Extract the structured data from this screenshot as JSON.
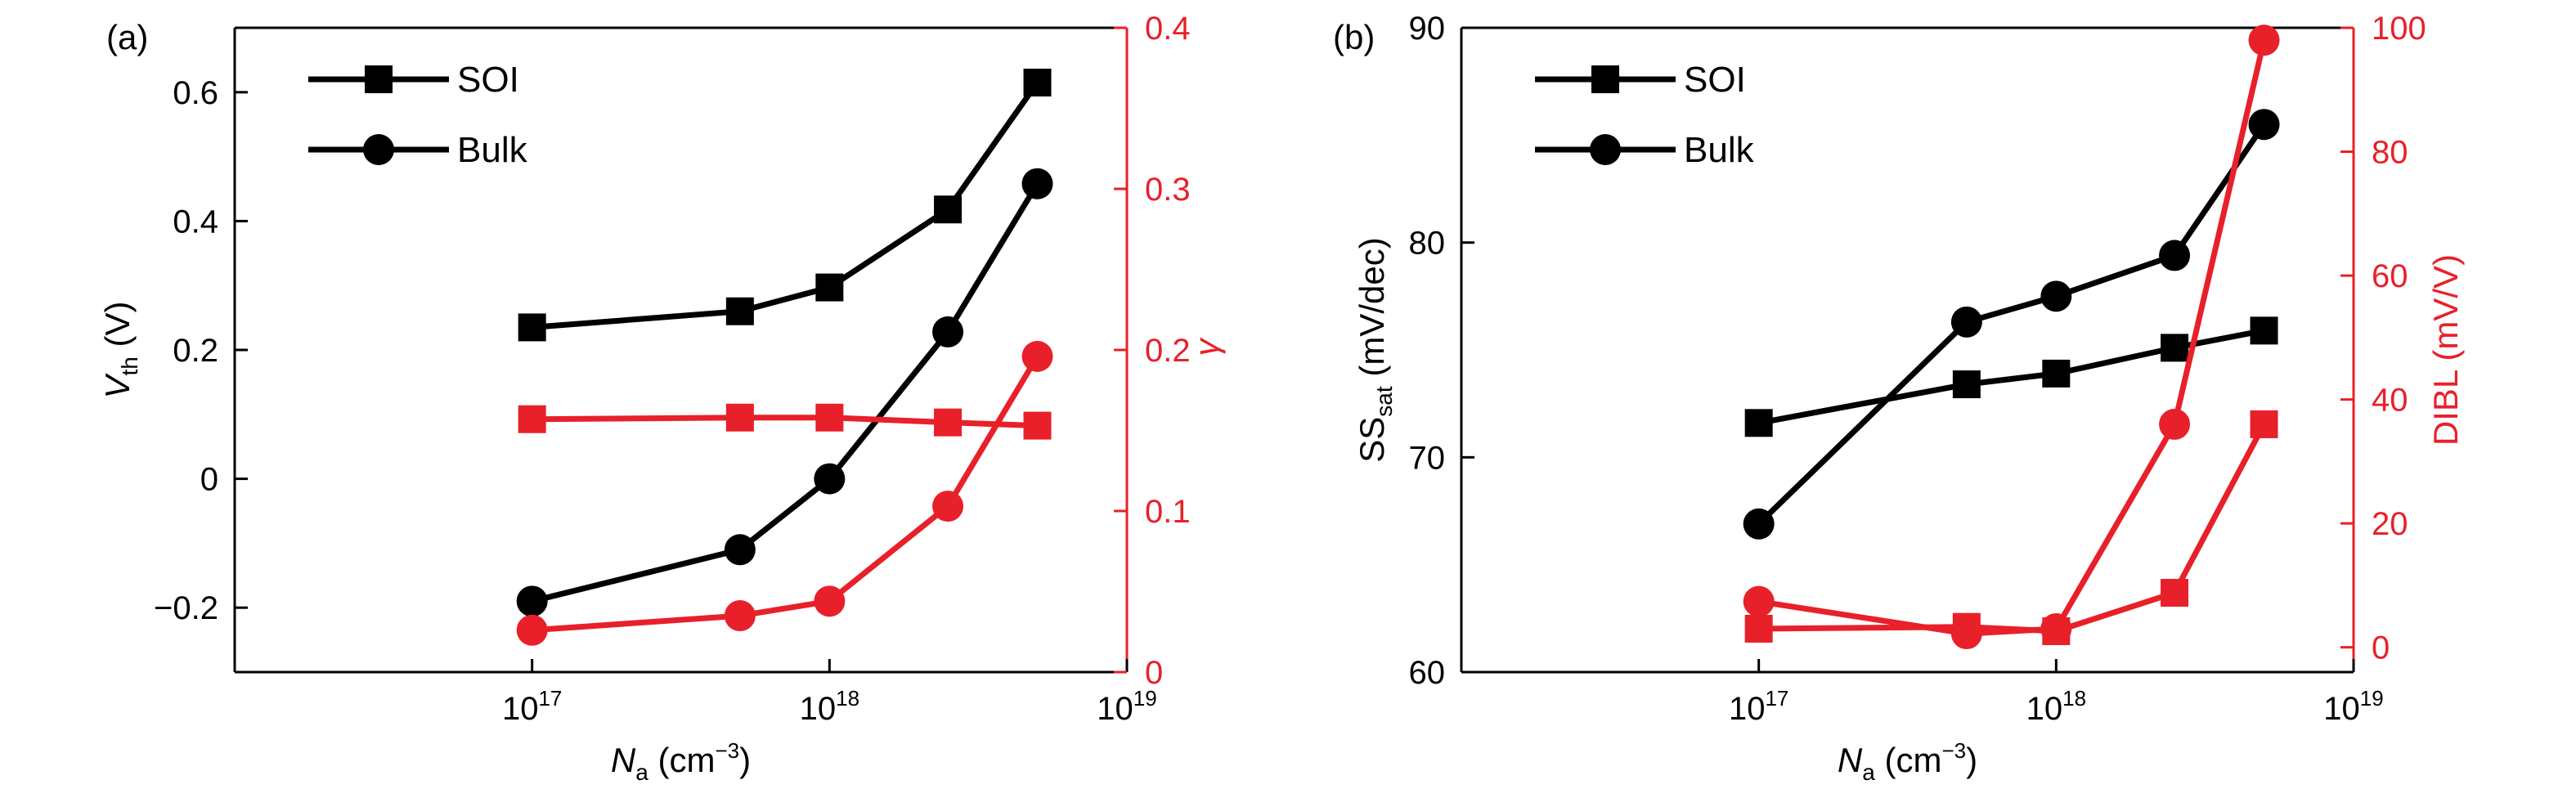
{
  "chart_data": [
    {
      "panel_label": "(a)",
      "type": "line",
      "x": [
        1e+17,
        5e+17,
        1e+18,
        2.5e+18,
        5e+18
      ],
      "xlim": [
        1e+16,
        1e+19
      ],
      "x_scale": "log",
      "xlabel": {
        "main": "N",
        "sub": "a",
        "unit": " (cm",
        "exp": "−3",
        "close": ")"
      },
      "xticks": [
        {
          "base": "10",
          "exp": "17",
          "value": 1e+17
        },
        {
          "base": "10",
          "exp": "18",
          "value": 1e+18
        },
        {
          "base": "10",
          "exp": "19",
          "value": 1e+19
        }
      ],
      "left_axis": {
        "label": {
          "main": "V",
          "sub": "th",
          "rest": " (V)"
        },
        "lim": [
          -0.3,
          0.7
        ],
        "ticks": [
          {
            "v": -0.2,
            "label": "−0.2"
          },
          {
            "v": 0,
            "label": "0"
          },
          {
            "v": 0.2,
            "label": "0.2"
          },
          {
            "v": 0.4,
            "label": "0.4"
          },
          {
            "v": 0.6,
            "label": "0.6"
          }
        ],
        "color": "#000000"
      },
      "right_axis": {
        "label": {
          "main": "γ"
        },
        "lim": [
          0,
          0.4
        ],
        "ticks": [
          {
            "v": 0,
            "label": "0"
          },
          {
            "v": 0.1,
            "label": "0.1"
          },
          {
            "v": 0.2,
            "label": "0.2"
          },
          {
            "v": 0.3,
            "label": "0.3"
          },
          {
            "v": 0.4,
            "label": "0.4"
          }
        ],
        "color": "#e8202a"
      },
      "series": [
        {
          "name": "SOI",
          "axis": "left",
          "marker": "square",
          "color": "#000000",
          "y": [
            0.235,
            0.26,
            0.297,
            0.418,
            0.615
          ]
        },
        {
          "name": "Bulk",
          "axis": "left",
          "marker": "circle",
          "color": "#000000",
          "y": [
            -0.19,
            -0.11,
            0.0,
            0.228,
            0.458
          ]
        },
        {
          "axis": "right",
          "marker": "square",
          "color": "#e8202a",
          "y": [
            0.157,
            0.158,
            0.158,
            0.155,
            0.153
          ]
        },
        {
          "axis": "right",
          "marker": "circle",
          "color": "#e8202a",
          "y": [
            0.026,
            0.035,
            0.044,
            0.103,
            0.196
          ]
        }
      ],
      "legend": {
        "placement": "top-left",
        "entries": [
          {
            "label": "SOI",
            "marker": "square"
          },
          {
            "label": "Bulk",
            "marker": "circle"
          }
        ]
      },
      "grid": false
    },
    {
      "panel_label": "(b)",
      "type": "line",
      "x": [
        1e+17,
        5e+17,
        1e+18,
        2.5e+18,
        5e+18
      ],
      "xlim": [
        1e+16,
        1e+19
      ],
      "x_scale": "log",
      "xlabel": {
        "main": "N",
        "sub": "a",
        "unit": " (cm",
        "exp": "−3",
        "close": ")"
      },
      "xticks": [
        {
          "base": "10",
          "exp": "17",
          "value": 1e+17
        },
        {
          "base": "10",
          "exp": "18",
          "value": 1e+18
        },
        {
          "base": "10",
          "exp": "19",
          "value": 1e+19
        }
      ],
      "left_axis": {
        "label": {
          "main": "SS",
          "sub": "sat",
          "rest": " (mV/dec)"
        },
        "lim": [
          60,
          90
        ],
        "ticks": [
          {
            "v": 60,
            "label": "60"
          },
          {
            "v": 70,
            "label": "70"
          },
          {
            "v": 80,
            "label": "80"
          },
          {
            "v": 90,
            "label": "90"
          }
        ],
        "color": "#000000"
      },
      "right_axis": {
        "label": {
          "main": "DIBL (mV/V)"
        },
        "lim": [
          -4,
          100
        ],
        "ticks": [
          {
            "v": 0,
            "label": "0"
          },
          {
            "v": 20,
            "label": "20"
          },
          {
            "v": 40,
            "label": "40"
          },
          {
            "v": 60,
            "label": "60"
          },
          {
            "v": 80,
            "label": "80"
          },
          {
            "v": 100,
            "label": "100"
          }
        ],
        "color": "#e8202a"
      },
      "series": [
        {
          "name": "SOI",
          "axis": "left",
          "marker": "square",
          "color": "#000000",
          "y": [
            71.6,
            73.4,
            73.9,
            75.1,
            75.9
          ]
        },
        {
          "name": "Bulk",
          "axis": "left",
          "marker": "circle",
          "color": "#000000",
          "y": [
            66.9,
            76.3,
            77.5,
            79.4,
            85.5
          ]
        },
        {
          "axis": "right",
          "marker": "square",
          "color": "#e8202a",
          "y": [
            3.0,
            3.3,
            2.6,
            8.8,
            36.0
          ]
        },
        {
          "axis": "right",
          "marker": "circle",
          "color": "#e8202a",
          "y": [
            7.4,
            2.2,
            3.0,
            36.0,
            98.0
          ]
        }
      ],
      "legend": {
        "placement": "top-left",
        "entries": [
          {
            "label": "SOI",
            "marker": "square"
          },
          {
            "label": "Bulk",
            "marker": "circle"
          }
        ]
      },
      "grid": false
    }
  ]
}
